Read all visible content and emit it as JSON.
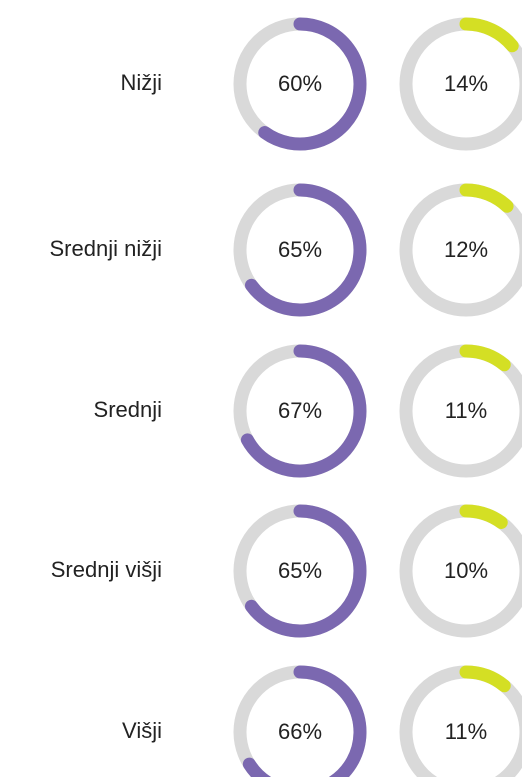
{
  "chart_data": {
    "type": "donut",
    "categories": [
      "Nižji",
      "Srednji nižji",
      "Srednji",
      "Srednji višji",
      "Višji"
    ],
    "series": [
      {
        "color": "#7b68b0",
        "values": [
          60,
          65,
          67,
          65,
          66
        ],
        "value_labels": [
          "60%",
          "65%",
          "67%",
          "65%",
          "66%"
        ]
      },
      {
        "color": "#d4df24",
        "values": [
          14,
          12,
          11,
          10,
          11
        ],
        "value_labels": [
          "14%",
          "12%",
          "11%",
          "10%",
          "11%"
        ]
      }
    ],
    "ylim": [
      0,
      100
    ],
    "track_color": "#d9d9d9"
  }
}
